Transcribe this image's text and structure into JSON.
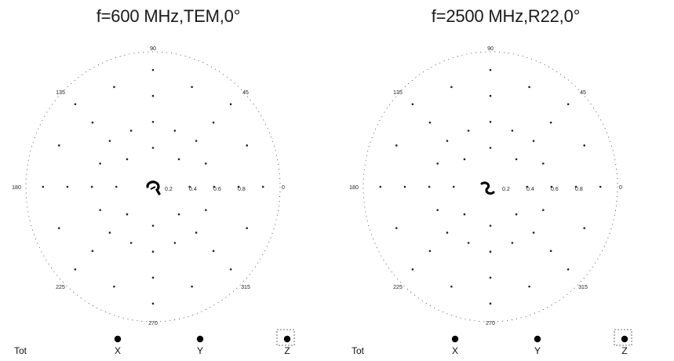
{
  "chart_data": [
    {
      "type": "polar",
      "title": "f=600 MHz,TEM,0°",
      "angle_labels": [
        "90",
        "45",
        "0",
        "315",
        "270",
        "225",
        "180",
        "135"
      ],
      "radial_ticks": [
        "0.2",
        "0.4",
        "0.6",
        "0.8"
      ],
      "legend": [
        "Tot",
        "X",
        "Y",
        "Z"
      ],
      "highlight_marker": "Z",
      "grid": "dotted"
    },
    {
      "type": "polar",
      "title": "f=2500 MHz,R22,0°",
      "angle_labels": [
        "90",
        "45",
        "0",
        "315",
        "270",
        "225",
        "180",
        "135"
      ],
      "radial_ticks": [
        "0.2",
        "0.4",
        "0.6",
        "0.8"
      ],
      "legend": [
        "Tot",
        "X",
        "Y",
        "Z"
      ],
      "highlight_marker": "Z",
      "grid": "dotted"
    }
  ]
}
